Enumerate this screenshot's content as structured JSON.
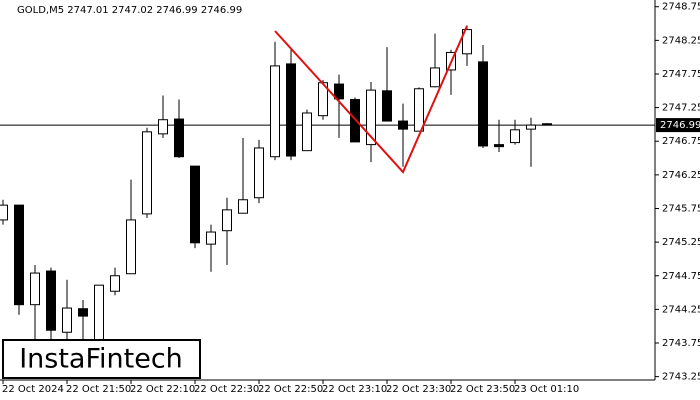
{
  "chart_data": {
    "type": "candlestick",
    "title": "GOLD,M5  2747.01 2747.02 2746.99 2746.99",
    "watermark": "InstaFintech",
    "categories": [
      "22 Oct 2024",
      null,
      null,
      null,
      "22 Oct 21:50",
      null,
      null,
      null,
      "22 Oct 22:10",
      null,
      null,
      null,
      "22 Oct 22:30",
      null,
      null,
      null,
      "22 Oct 22:50",
      null,
      null,
      null,
      "22 Oct 23:10",
      null,
      null,
      null,
      "22 Oct 23:30",
      null,
      null,
      null,
      "22 Oct 23:50",
      null,
      null,
      null,
      "23 Oct 01:10",
      null,
      null
    ],
    "open": [
      2745.58,
      2745.8,
      2744.32,
      2744.82,
      2743.91,
      2744.26,
      2743.79,
      2744.52,
      2744.78,
      2745.67,
      2746.86,
      2747.08,
      2746.38,
      2745.22,
      2745.42,
      2745.68,
      2745.91,
      2746.52,
      2747.9,
      2746.61,
      2747.13,
      2747.6,
      2747.37,
      2746.7,
      2747.5,
      2747.05,
      2746.9,
      2747.56,
      2747.81,
      2748.05,
      2747.93,
      2746.7,
      2746.73,
      2746.93,
      2747.01
    ],
    "high": [
      2745.88,
      2745.8,
      2744.91,
      2744.87,
      2744.69,
      2744.39,
      2744.61,
      2744.87,
      2746.18,
      2746.95,
      2747.43,
      2747.37,
      2746.38,
      2745.51,
      2745.91,
      2746.8,
      2746.77,
      2748.23,
      2748.11,
      2747.22,
      2747.66,
      2747.74,
      2747.4,
      2747.63,
      2748.15,
      2747.31,
      2747.55,
      2748.35,
      2748.11,
      2748.47,
      2748.18,
      2747.07,
      2747.07,
      2747.1,
      2747.02
    ],
    "low": [
      2745.51,
      2744.17,
      2743.79,
      2743.57,
      2743.79,
      2743.79,
      2743.72,
      2744.46,
      2744.78,
      2745.61,
      2746.8,
      2746.5,
      2745.16,
      2744.81,
      2744.91,
      2745.68,
      2745.83,
      2746.47,
      2746.47,
      2746.61,
      2747.07,
      2746.8,
      2746.74,
      2746.44,
      2747.05,
      2746.37,
      2746.9,
      2747.55,
      2747.44,
      2747.87,
      2746.65,
      2746.59,
      2746.7,
      2746.37,
      2746.99
    ],
    "close": [
      2745.8,
      2744.32,
      2744.79,
      2743.94,
      2744.27,
      2744.15,
      2744.61,
      2744.75,
      2745.58,
      2746.89,
      2747.07,
      2746.52,
      2745.24,
      2745.4,
      2745.73,
      2745.88,
      2746.65,
      2747.87,
      2746.53,
      2747.17,
      2747.62,
      2747.38,
      2746.74,
      2747.51,
      2747.05,
      2746.93,
      2747.53,
      2747.84,
      2748.07,
      2748.41,
      2746.68,
      2746.67,
      2746.92,
      2746.99,
      2746.99
    ],
    "last_price": 2746.99,
    "ylim": [
      2743.2,
      2748.85
    ],
    "yticks": [
      2748.75,
      2748.25,
      2747.75,
      2747.25,
      2746.75,
      2746.25,
      2745.75,
      2745.25,
      2744.75,
      2744.25,
      2743.75,
      2743.25
    ]
  }
}
